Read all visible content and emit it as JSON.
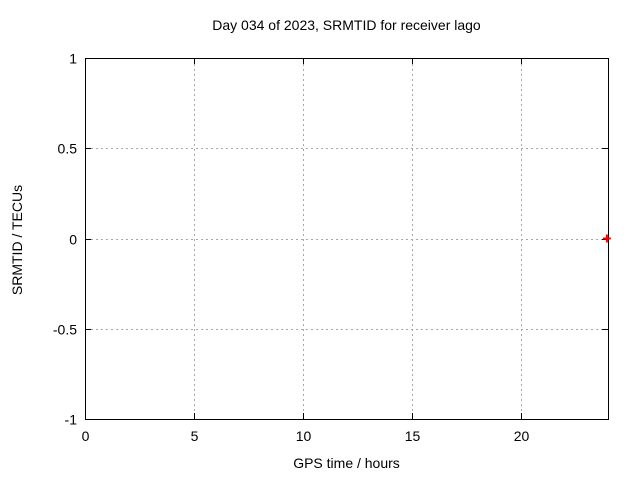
{
  "chart_data": {
    "type": "scatter",
    "title": "Day 034 of 2023, SRMTID for receiver lago",
    "xlabel": "GPS time / hours",
    "ylabel": "SRMTID / TECUs",
    "xlim": [
      0,
      24
    ],
    "ylim": [
      -1,
      1
    ],
    "x_ticks": [
      0,
      5,
      10,
      15,
      20
    ],
    "y_ticks": [
      1,
      0.5,
      0,
      -0.5,
      -1
    ],
    "grid": true,
    "legend": "none",
    "series": [
      {
        "name": "SRMTID",
        "marker": "plus",
        "color": "#ff0000",
        "points": [
          {
            "x": 23.95,
            "y": 0
          }
        ]
      }
    ]
  },
  "colors": {
    "background": "#ffffff",
    "axis": "#000000",
    "grid": "#a8a8a8",
    "text": "#000000",
    "marker": "#ff0000"
  }
}
